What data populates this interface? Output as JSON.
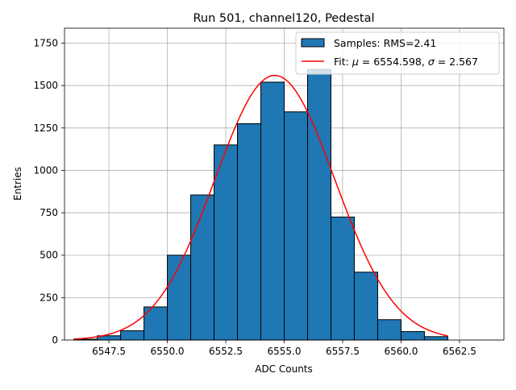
{
  "chart_data": {
    "type": "bar",
    "title": "Run 501, channel120, Pedestal",
    "xlabel": "ADC Counts",
    "ylabel": "Entries",
    "xlim": [
      6545.6,
      6564.4
    ],
    "ylim": [
      0,
      1838
    ],
    "xticks": [
      6547.5,
      6550.0,
      6552.5,
      6555.0,
      6557.5,
      6560.0,
      6562.5
    ],
    "xtick_labels": [
      "6547.5",
      "6550.0",
      "6552.5",
      "6555.0",
      "6557.5",
      "6560.0",
      "6562.5"
    ],
    "yticks": [
      0,
      250,
      500,
      750,
      1000,
      1250,
      1500,
      1750
    ],
    "ytick_labels": [
      "0",
      "250",
      "500",
      "750",
      "1000",
      "1250",
      "1500",
      "1750"
    ],
    "grid": true,
    "legend_position": "top-right",
    "histogram": {
      "name": "Samples: RMS=2.41",
      "color": "#1f77b4",
      "edge_color": "#000000",
      "bin_edges": [
        6546,
        6547,
        6548,
        6549,
        6550,
        6551,
        6552,
        6553,
        6554,
        6555,
        6556,
        6557,
        6558,
        6559,
        6560,
        6561,
        6562
      ],
      "counts": [
        5,
        25,
        55,
        195,
        500,
        855,
        1150,
        1275,
        1520,
        1345,
        1595,
        725,
        400,
        120,
        50,
        20
      ]
    },
    "fit": {
      "name_prefix": "Fit: ",
      "name_mu": "μ",
      "name_mid": " = 6554.598, ",
      "name_sigma": "σ",
      "name_suffix": " = 2.567",
      "color": "#ff0000",
      "mu": 6554.598,
      "sigma": 2.567,
      "amplitude": 1560,
      "x_range": [
        6546,
        6562
      ]
    }
  }
}
